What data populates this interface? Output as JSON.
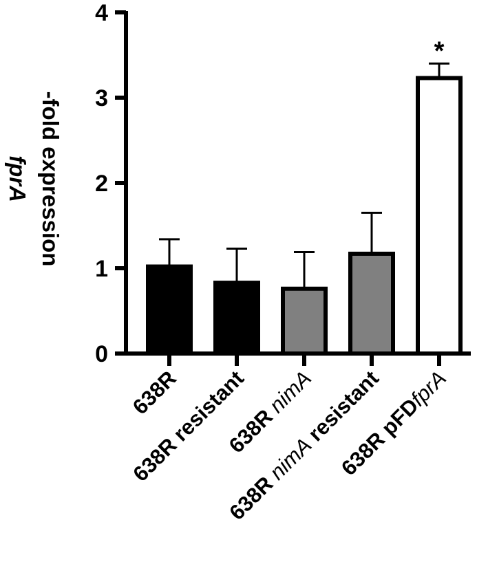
{
  "chart_data": {
    "type": "bar",
    "categories": [
      [
        {
          "text": "638R",
          "italic": false
        }
      ],
      [
        {
          "text": "638R resistant",
          "italic": false
        }
      ],
      [
        {
          "text": "638R ",
          "italic": false
        },
        {
          "text": "nimA",
          "italic": true
        }
      ],
      [
        {
          "text": "638R ",
          "italic": false
        },
        {
          "text": "nimA",
          "italic": true
        },
        {
          "text": " resistant",
          "italic": false
        }
      ],
      [
        {
          "text": "638R pFD",
          "italic": false
        },
        {
          "text": "fprA",
          "italic": true
        }
      ]
    ],
    "values": [
      1.02,
      0.83,
      0.76,
      1.17,
      3.23
    ],
    "errors": [
      0.32,
      0.4,
      0.43,
      0.48,
      0.17
    ],
    "bar_colors": [
      "#000000",
      "#000000",
      "#808080",
      "#808080",
      "#ffffff"
    ],
    "annotations": [
      "",
      "",
      "",
      "",
      "*"
    ],
    "ylabel_lines": [
      [
        {
          "text": "-fold expression",
          "italic": false
        }
      ],
      [
        {
          "text": "fprA",
          "italic": true
        }
      ]
    ],
    "ylim": [
      0,
      4
    ],
    "yticks": [
      "0",
      "1",
      "2",
      "3",
      "4"
    ]
  }
}
